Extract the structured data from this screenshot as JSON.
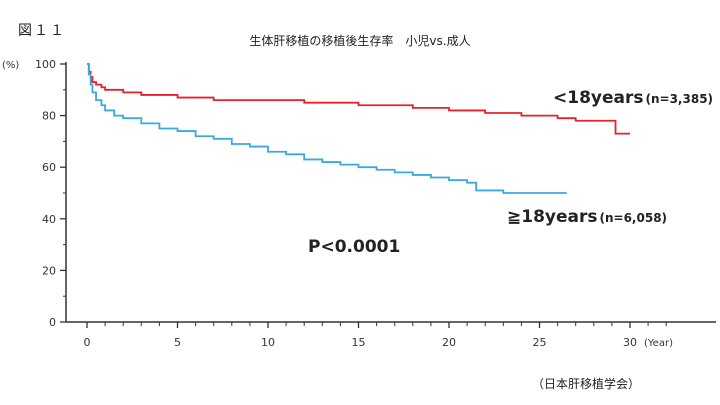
{
  "figure_label": "図１１",
  "source_note": "（日本肝移植学会）",
  "chart_data": {
    "type": "line",
    "title": "生体肝移植の移植後生存率　小児vs.成人",
    "xlabel": "",
    "x_unit": "(Year)",
    "y_unit": "(%)",
    "xlim": [
      0,
      30
    ],
    "ylim": [
      0,
      100
    ],
    "x_ticks": [
      "0",
      "5",
      "10",
      "15",
      "20",
      "25",
      "30"
    ],
    "y_ticks": [
      "0",
      "20",
      "40",
      "60",
      "80",
      "100"
    ],
    "grid": false,
    "annotation": "P<0.0001",
    "series": [
      {
        "name": "<18years",
        "n_label": "(n=3,385)",
        "color": "#e8202a",
        "x": [
          0,
          0.1,
          0.2,
          0.3,
          0.5,
          0.8,
          1,
          2,
          3,
          5,
          7,
          8,
          10,
          12,
          15,
          18,
          20,
          22,
          24,
          26,
          27,
          28,
          29,
          29.2,
          30
        ],
        "y": [
          100,
          97,
          95,
          93,
          92,
          91,
          90,
          89,
          88,
          87,
          86,
          86,
          86,
          85,
          84,
          83,
          82,
          81,
          80,
          79,
          78,
          78,
          78,
          73,
          73
        ]
      },
      {
        "name": "≧18years",
        "n_label": "(n=6,058)",
        "color": "#39a9e0",
        "x": [
          0,
          0.1,
          0.2,
          0.3,
          0.5,
          0.8,
          1,
          1.5,
          2,
          3,
          4,
          5,
          6,
          7,
          8,
          9,
          10,
          11,
          12,
          13,
          14,
          15,
          16,
          17,
          18,
          19,
          20,
          21,
          21.5,
          22,
          23,
          24,
          25,
          26.5
        ],
        "y": [
          100,
          96,
          92,
          89,
          86,
          84,
          82,
          80,
          79,
          77,
          75,
          74,
          72,
          71,
          69,
          68,
          66,
          65,
          63,
          62,
          61,
          60,
          59,
          58,
          57,
          56,
          55,
          54,
          51,
          51,
          50,
          50,
          50,
          50
        ]
      }
    ]
  }
}
